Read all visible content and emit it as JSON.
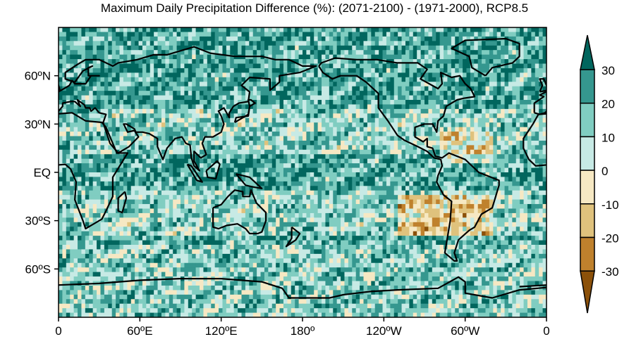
{
  "title": "Maximum Daily Precipitation Difference (%): (2071-2100) - (1971-2000), RCP8.5",
  "map": {
    "projection": "equirectangular",
    "lon_range": [
      0,
      360
    ],
    "lat_range": [
      -90,
      90
    ],
    "x_tick_labels": [
      "0",
      "60ºE",
      "120ºE",
      "180º",
      "120ºW",
      "60ºW",
      "0"
    ],
    "y_tick_labels": [
      "60ºN",
      "30ºN",
      "EQ",
      "30ºS",
      "60ºS"
    ]
  },
  "colorbar": {
    "labels": [
      "30",
      "20",
      "10",
      "0",
      "-10",
      "-20",
      "-30"
    ],
    "levels": [
      30,
      20,
      10,
      0,
      -10,
      -20,
      -30
    ],
    "colors": [
      "#01665e",
      "#35978f",
      "#80cdc1",
      "#c7eae5",
      "#f6e8c3",
      "#dfc27d",
      "#bf812d",
      "#8c510a"
    ],
    "extend": "both"
  }
}
